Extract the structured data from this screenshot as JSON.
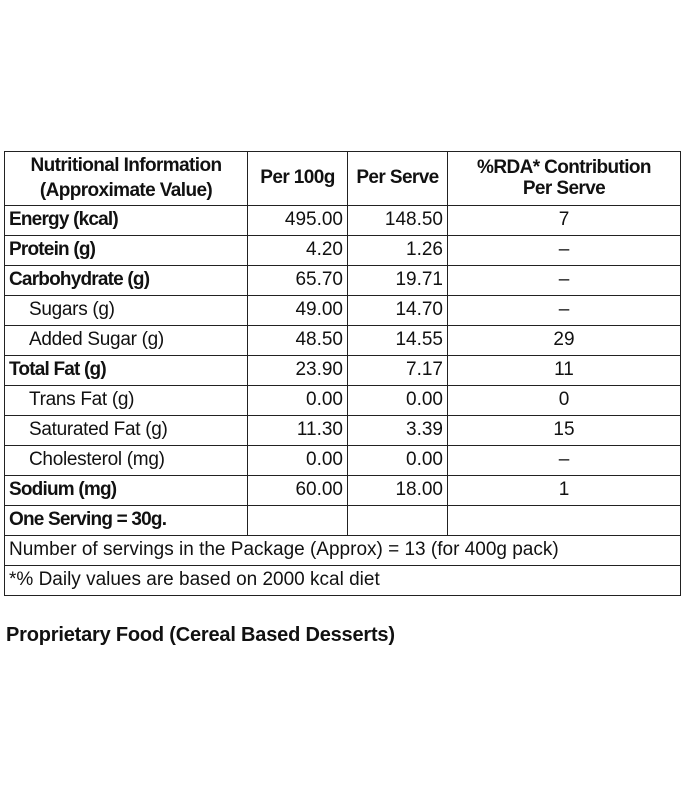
{
  "table": {
    "headers": {
      "nutrient_line1": "Nutritional Information",
      "nutrient_line2": "(Approximate Value)",
      "per100g": "Per 100g",
      "per_serve": "Per Serve",
      "rda_line1": "%RDA* Contribution",
      "rda_line2": "Per Serve"
    },
    "rows": [
      {
        "name": "Energy (kcal)",
        "per100g": "495.00",
        "per_serve": "148.50",
        "rda": "7"
      },
      {
        "name": "Protein (g)",
        "per100g": "4.20",
        "per_serve": "1.26",
        "rda": "–"
      },
      {
        "name": "Carbohydrate (g)",
        "per100g": "65.70",
        "per_serve": "19.71",
        "rda": "–"
      },
      {
        "name": "Sugars (g)",
        "per100g": "49.00",
        "per_serve": "14.70",
        "rda": "–"
      },
      {
        "name": "Added Sugar (g)",
        "per100g": "48.50",
        "per_serve": "14.55",
        "rda": "29"
      },
      {
        "name": "Total Fat (g)",
        "per100g": "23.90",
        "per_serve": "7.17",
        "rda": "11"
      },
      {
        "name": "Trans Fat (g)",
        "per100g": "0.00",
        "per_serve": "0.00",
        "rda": "0"
      },
      {
        "name": "Saturated Fat (g)",
        "per100g": "11.30",
        "per_serve": "3.39",
        "rda": "15"
      },
      {
        "name": "Cholesterol (mg)",
        "per100g": "0.00",
        "per_serve": "0.00",
        "rda": "–"
      },
      {
        "name": "Sodium (mg)",
        "per100g": "60.00",
        "per_serve": "18.00",
        "rda": "1"
      }
    ],
    "serving": "One Serving = 30g.",
    "servings_note": "Number of servings in the Package (Approx) = 13 (for 400g pack)",
    "daily_note": "*% Daily values are based on 2000 kcal diet"
  },
  "footer": {
    "title": "Proprietary Food (Cereal Based Desserts)"
  }
}
